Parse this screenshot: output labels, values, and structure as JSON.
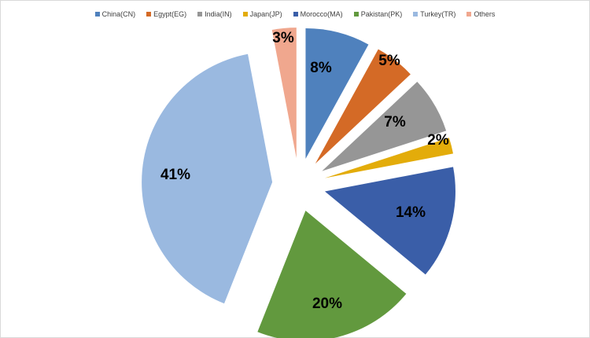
{
  "chart_data": {
    "type": "pie",
    "title": "",
    "legend_position": "top",
    "exploded": true,
    "slices": [
      {
        "name": "China(CN)",
        "value": 8,
        "label": "8%",
        "color": "#4f81bd"
      },
      {
        "name": "Egypt(EG)",
        "value": 5,
        "label": "5%",
        "color": "#d46a26"
      },
      {
        "name": "India(IN)",
        "value": 7,
        "label": "7%",
        "color": "#969696"
      },
      {
        "name": "Japan(JP)",
        "value": 2,
        "label": "2%",
        "color": "#e3ac0a"
      },
      {
        "name": "Morocco(MA)",
        "value": 14,
        "label": "14%",
        "color": "#3a5ea8"
      },
      {
        "name": "Pakistan(PK)",
        "value": 20,
        "label": "20%",
        "color": "#62993e"
      },
      {
        "name": "Turkey(TR)",
        "value": 41,
        "label": "41%",
        "color": "#9ab9e0"
      },
      {
        "name": "Others",
        "value": 3,
        "label": "3%",
        "color": "#f0a78e"
      }
    ]
  }
}
